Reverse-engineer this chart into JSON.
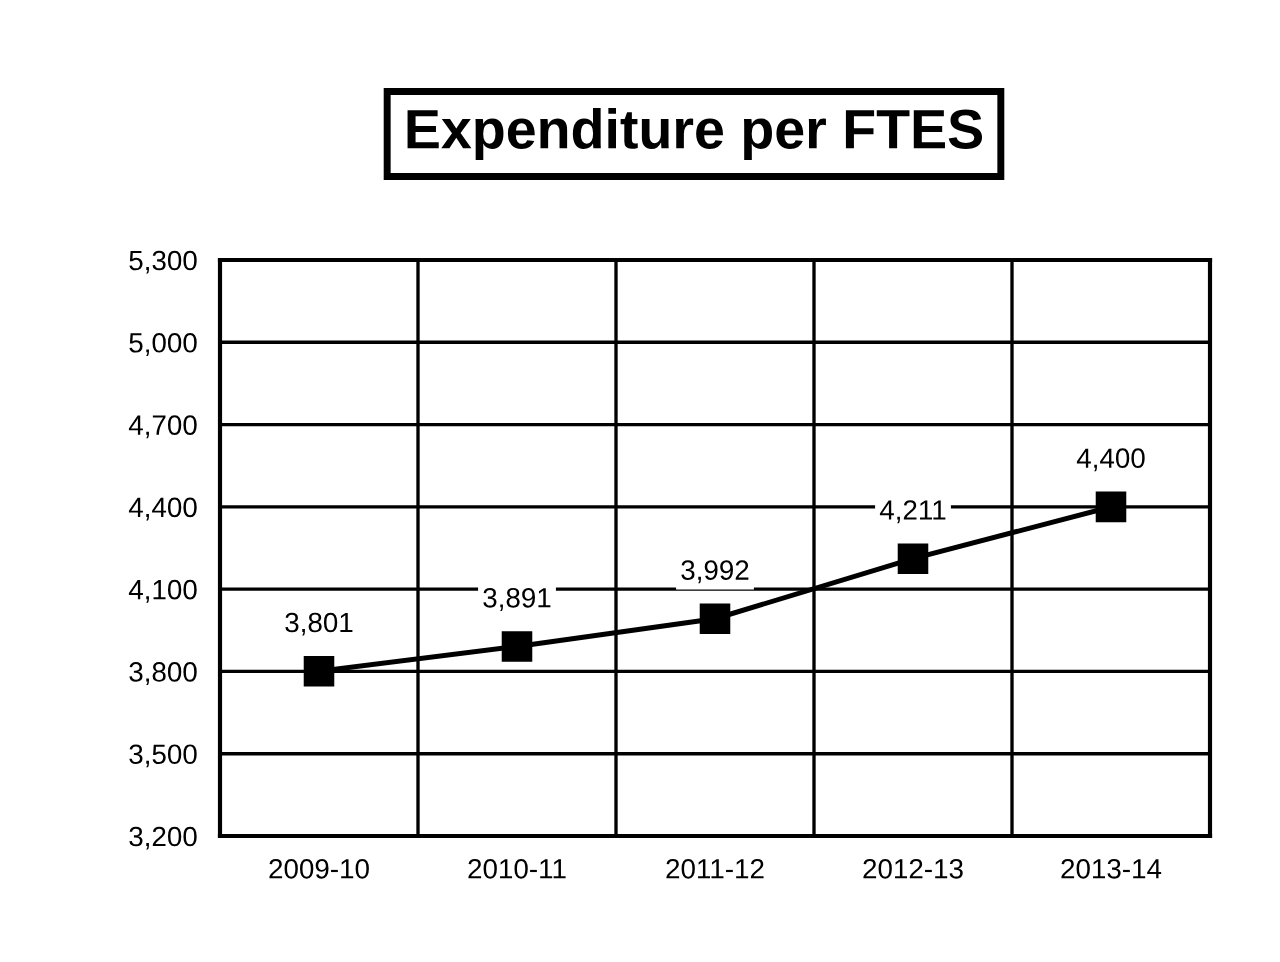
{
  "chart_data": {
    "type": "line",
    "title": "Expenditure per FTES",
    "categories": [
      "2009-10",
      "2010-11",
      "2011-12",
      "2012-13",
      "2013-14"
    ],
    "series": [
      {
        "color": "#000000",
        "values": [
          3801,
          3891,
          3992,
          4211,
          4400
        ],
        "value_labels": [
          "3,801",
          "3,891",
          "3,992",
          "4,211",
          "4,400"
        ]
      }
    ],
    "ylim": [
      3200,
      5300
    ],
    "yticks": [
      {
        "value": 3200,
        "label": "3,200"
      },
      {
        "value": 3500,
        "label": "3,500"
      },
      {
        "value": 3800,
        "label": "3,800"
      },
      {
        "value": 4100,
        "label": "4,100"
      },
      {
        "value": 4400,
        "label": "4,400"
      },
      {
        "value": 4700,
        "label": "4,700"
      },
      {
        "value": 5000,
        "label": "5,000"
      },
      {
        "value": 5300,
        "label": "5,300"
      }
    ],
    "grid": true,
    "marker": "square",
    "line_style": "solid"
  }
}
